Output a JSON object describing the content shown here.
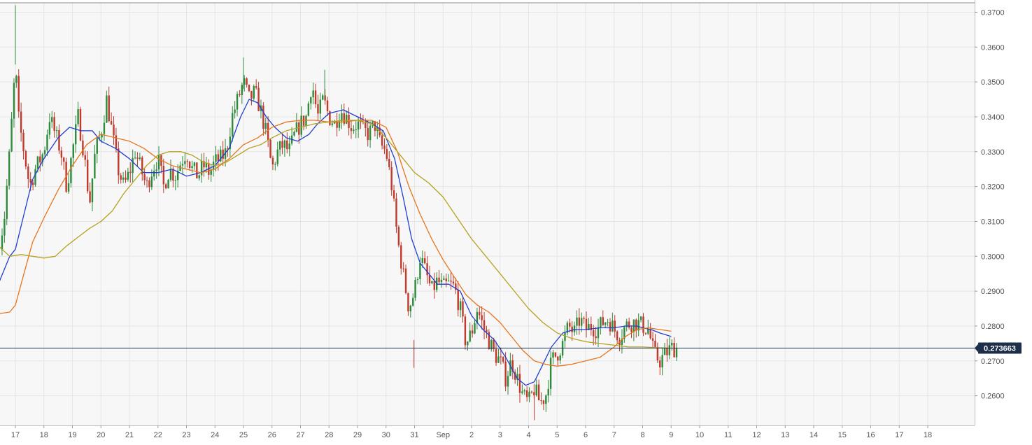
{
  "chart_data": {
    "type": "candlestick",
    "title": "",
    "xlabel": "",
    "ylabel": "",
    "ylim": [
      0.2515,
      0.3727
    ],
    "grid": true,
    "x_ticks": [
      "17",
      "18",
      "19",
      "20",
      "21",
      "22",
      "23",
      "24",
      "25",
      "26",
      "27",
      "28",
      "29",
      "30",
      "31",
      "Sep",
      "2",
      "3",
      "4",
      "5",
      "6",
      "7",
      "8",
      "9",
      "10",
      "11",
      "12",
      "13",
      "14",
      "15",
      "16",
      "17",
      "18"
    ],
    "y_ticks": [
      "0.2600",
      "0.2700",
      "0.2800",
      "0.2900",
      "0.3000",
      "0.3100",
      "0.3200",
      "0.3300",
      "0.3400",
      "0.3500",
      "0.3600",
      "0.3700"
    ],
    "y_tick_values": [
      0.26,
      0.27,
      0.28,
      0.29,
      0.3,
      0.31,
      0.32,
      0.33,
      0.34,
      0.35,
      0.36,
      0.37
    ],
    "current_price": 0.273663,
    "current_price_label": "0.273663",
    "colors": {
      "up": "#2e8b3a",
      "down": "#c0392b",
      "ma_fast": "#1f3fd1",
      "ma_mid": "#e8741c",
      "ma_slow": "#b5a21e",
      "price_line": "#1c2e4a",
      "grid": "#e6e6e6",
      "plot_bg": "#f7f7f7",
      "label_bg": "#1c2e4a"
    },
    "close_path": [
      [
        16.0,
        0.285
      ],
      [
        16.3,
        0.299
      ],
      [
        16.6,
        0.31
      ],
      [
        16.8,
        0.33
      ],
      [
        17.0,
        0.355
      ],
      [
        17.1,
        0.34
      ],
      [
        17.3,
        0.33
      ],
      [
        17.5,
        0.32
      ],
      [
        17.7,
        0.325
      ],
      [
        18.0,
        0.33
      ],
      [
        18.2,
        0.34
      ],
      [
        18.4,
        0.335
      ],
      [
        18.6,
        0.33
      ],
      [
        18.8,
        0.32
      ],
      [
        19.0,
        0.33
      ],
      [
        19.2,
        0.34
      ],
      [
        19.4,
        0.33
      ],
      [
        19.6,
        0.315
      ],
      [
        19.8,
        0.33
      ],
      [
        20.0,
        0.335
      ],
      [
        20.2,
        0.345
      ],
      [
        20.4,
        0.335
      ],
      [
        20.6,
        0.325
      ],
      [
        20.8,
        0.32
      ],
      [
        21.0,
        0.324
      ],
      [
        21.2,
        0.33
      ],
      [
        21.4,
        0.325
      ],
      [
        21.6,
        0.32
      ],
      [
        21.8,
        0.325
      ],
      [
        22.0,
        0.328
      ],
      [
        22.2,
        0.32
      ],
      [
        22.4,
        0.325
      ],
      [
        22.6,
        0.323
      ],
      [
        22.8,
        0.327
      ],
      [
        23.0,
        0.33
      ],
      [
        23.2,
        0.325
      ],
      [
        23.4,
        0.323
      ],
      [
        23.6,
        0.326
      ],
      [
        23.8,
        0.324
      ],
      [
        24.0,
        0.327
      ],
      [
        24.2,
        0.328
      ],
      [
        24.4,
        0.33
      ],
      [
        24.6,
        0.34
      ],
      [
        24.8,
        0.345
      ],
      [
        25.0,
        0.35
      ],
      [
        25.2,
        0.345
      ],
      [
        25.4,
        0.347
      ],
      [
        25.6,
        0.342
      ],
      [
        25.8,
        0.335
      ],
      [
        26.0,
        0.325
      ],
      [
        26.2,
        0.33
      ],
      [
        26.4,
        0.332
      ],
      [
        26.6,
        0.33
      ],
      [
        26.8,
        0.335
      ],
      [
        27.0,
        0.338
      ],
      [
        27.2,
        0.34
      ],
      [
        27.4,
        0.35
      ],
      [
        27.6,
        0.34
      ],
      [
        27.8,
        0.345
      ],
      [
        28.0,
        0.34
      ],
      [
        28.2,
        0.338
      ],
      [
        28.4,
        0.342
      ],
      [
        28.6,
        0.34
      ],
      [
        28.8,
        0.337
      ],
      [
        29.0,
        0.338
      ],
      [
        29.2,
        0.336
      ],
      [
        29.4,
        0.335
      ],
      [
        29.6,
        0.338
      ],
      [
        29.8,
        0.332
      ],
      [
        30.0,
        0.33
      ],
      [
        30.2,
        0.32
      ],
      [
        30.4,
        0.305
      ],
      [
        30.6,
        0.295
      ],
      [
        30.8,
        0.285
      ],
      [
        31.0,
        0.29
      ],
      [
        31.2,
        0.3
      ],
      [
        31.4,
        0.295
      ],
      [
        31.6,
        0.29
      ],
      [
        31.8,
        0.293
      ],
      [
        32.0,
        0.291
      ],
      [
        32.2,
        0.292
      ],
      [
        32.4,
        0.291
      ],
      [
        32.6,
        0.285
      ],
      [
        32.8,
        0.275
      ],
      [
        33.0,
        0.278
      ],
      [
        33.2,
        0.285
      ],
      [
        33.4,
        0.28
      ],
      [
        33.6,
        0.276
      ],
      [
        33.8,
        0.272
      ],
      [
        34.0,
        0.27
      ],
      [
        34.2,
        0.265
      ],
      [
        34.4,
        0.27
      ],
      [
        34.6,
        0.265
      ],
      [
        34.8,
        0.26
      ],
      [
        35.0,
        0.258
      ],
      [
        35.2,
        0.262
      ],
      [
        35.4,
        0.258
      ],
      [
        35.6,
        0.26
      ],
      [
        35.8,
        0.27
      ],
      [
        36.0,
        0.272
      ],
      [
        36.2,
        0.275
      ],
      [
        36.4,
        0.28
      ],
      [
        36.6,
        0.278
      ],
      [
        36.8,
        0.282
      ],
      [
        37.0,
        0.279
      ],
      [
        37.2,
        0.28
      ],
      [
        37.4,
        0.279
      ],
      [
        37.6,
        0.281
      ],
      [
        37.8,
        0.282
      ],
      [
        38.0,
        0.279
      ],
      [
        38.2,
        0.277
      ],
      [
        38.4,
        0.28
      ],
      [
        38.6,
        0.281
      ],
      [
        38.8,
        0.281
      ],
      [
        39.0,
        0.28
      ],
      [
        39.2,
        0.279
      ],
      [
        39.4,
        0.272
      ],
      [
        39.6,
        0.27
      ],
      [
        39.8,
        0.272
      ],
      [
        40.0,
        0.2737
      ]
    ],
    "series": [
      {
        "points": [
          [
            16.0,
            0.288
          ],
          [
            16.4,
            0.292
          ],
          [
            16.8,
            0.3
          ],
          [
            17.0,
            0.302
          ],
          [
            17.3,
            0.312
          ],
          [
            17.6,
            0.322
          ],
          [
            18.0,
            0.328
          ],
          [
            18.5,
            0.334
          ],
          [
            18.9,
            0.337
          ],
          [
            19.3,
            0.336
          ],
          [
            19.7,
            0.336
          ],
          [
            20.0,
            0.333
          ],
          [
            20.5,
            0.331
          ],
          [
            21.0,
            0.328
          ],
          [
            21.5,
            0.324
          ],
          [
            22.0,
            0.324
          ],
          [
            22.5,
            0.325
          ],
          [
            23.0,
            0.323
          ],
          [
            23.5,
            0.324
          ],
          [
            24.0,
            0.326
          ],
          [
            24.5,
            0.331
          ],
          [
            24.9,
            0.34
          ],
          [
            25.2,
            0.345
          ],
          [
            25.5,
            0.344
          ],
          [
            25.8,
            0.34
          ],
          [
            26.1,
            0.337
          ],
          [
            26.5,
            0.334
          ],
          [
            26.9,
            0.333
          ],
          [
            27.3,
            0.335
          ],
          [
            27.6,
            0.338
          ],
          [
            28.0,
            0.341
          ],
          [
            28.5,
            0.342
          ],
          [
            29.0,
            0.34
          ],
          [
            29.5,
            0.338
          ],
          [
            29.9,
            0.336
          ],
          [
            30.3,
            0.328
          ],
          [
            30.6,
            0.317
          ],
          [
            30.9,
            0.305
          ],
          [
            31.2,
            0.298
          ],
          [
            31.5,
            0.295
          ],
          [
            31.8,
            0.292
          ],
          [
            32.2,
            0.292
          ],
          [
            32.6,
            0.29
          ],
          [
            33.0,
            0.283
          ],
          [
            33.4,
            0.279
          ],
          [
            33.8,
            0.276
          ],
          [
            34.2,
            0.271
          ],
          [
            34.6,
            0.265
          ],
          [
            34.9,
            0.263
          ],
          [
            35.2,
            0.264
          ],
          [
            35.5,
            0.269
          ],
          [
            35.8,
            0.274
          ],
          [
            36.2,
            0.278
          ],
          [
            36.6,
            0.279
          ],
          [
            37.0,
            0.279
          ],
          [
            37.5,
            0.2795
          ],
          [
            38.0,
            0.2795
          ],
          [
            38.4,
            0.28
          ],
          [
            38.8,
            0.28
          ],
          [
            39.0,
            0.2795
          ],
          [
            39.3,
            0.279
          ],
          [
            39.6,
            0.278
          ],
          [
            40.0,
            0.277
          ]
        ]
      },
      {
        "points": [
          [
            16.0,
            0.284
          ],
          [
            16.4,
            0.2835
          ],
          [
            16.8,
            0.284
          ],
          [
            17.0,
            0.286
          ],
          [
            17.3,
            0.295
          ],
          [
            17.6,
            0.304
          ],
          [
            18.0,
            0.311
          ],
          [
            18.5,
            0.319
          ],
          [
            19.0,
            0.326
          ],
          [
            19.5,
            0.332
          ],
          [
            20.0,
            0.335
          ],
          [
            20.5,
            0.334
          ],
          [
            21.0,
            0.333
          ],
          [
            21.5,
            0.331
          ],
          [
            22.0,
            0.328
          ],
          [
            22.5,
            0.326
          ],
          [
            23.0,
            0.325
          ],
          [
            23.5,
            0.324
          ],
          [
            24.0,
            0.325
          ],
          [
            24.5,
            0.328
          ],
          [
            25.0,
            0.332
          ],
          [
            25.5,
            0.334
          ],
          [
            26.0,
            0.337
          ],
          [
            26.5,
            0.3385
          ],
          [
            27.0,
            0.339
          ],
          [
            27.5,
            0.339
          ],
          [
            28.0,
            0.3385
          ],
          [
            28.5,
            0.3385
          ],
          [
            29.0,
            0.339
          ],
          [
            29.5,
            0.339
          ],
          [
            30.0,
            0.337
          ],
          [
            30.4,
            0.33
          ],
          [
            30.8,
            0.32
          ],
          [
            31.2,
            0.312
          ],
          [
            31.6,
            0.305
          ],
          [
            32.0,
            0.299
          ],
          [
            32.4,
            0.294
          ],
          [
            32.8,
            0.289
          ],
          [
            33.2,
            0.286
          ],
          [
            33.6,
            0.284
          ],
          [
            34.0,
            0.281
          ],
          [
            34.4,
            0.277
          ],
          [
            34.8,
            0.273
          ],
          [
            35.2,
            0.27
          ],
          [
            35.6,
            0.269
          ],
          [
            36.0,
            0.2685
          ],
          [
            36.5,
            0.269
          ],
          [
            37.0,
            0.27
          ],
          [
            37.5,
            0.271
          ],
          [
            38.0,
            0.274
          ],
          [
            38.4,
            0.277
          ],
          [
            38.8,
            0.279
          ],
          [
            39.2,
            0.2795
          ],
          [
            39.6,
            0.279
          ],
          [
            40.0,
            0.2785
          ]
        ]
      },
      {
        "points": [
          [
            16.0,
            0.307
          ],
          [
            16.4,
            0.303
          ],
          [
            16.8,
            0.3
          ],
          [
            17.2,
            0.3005
          ],
          [
            17.6,
            0.3
          ],
          [
            18.0,
            0.2995
          ],
          [
            18.4,
            0.3
          ],
          [
            18.8,
            0.303
          ],
          [
            19.2,
            0.3055
          ],
          [
            19.6,
            0.308
          ],
          [
            20.0,
            0.31
          ],
          [
            20.4,
            0.313
          ],
          [
            20.8,
            0.318
          ],
          [
            21.2,
            0.322
          ],
          [
            21.6,
            0.326
          ],
          [
            22.0,
            0.329
          ],
          [
            22.4,
            0.33
          ],
          [
            22.8,
            0.33
          ],
          [
            23.2,
            0.329
          ],
          [
            23.6,
            0.327
          ],
          [
            24.0,
            0.326
          ],
          [
            24.4,
            0.327
          ],
          [
            24.8,
            0.329
          ],
          [
            25.2,
            0.331
          ],
          [
            25.6,
            0.332
          ],
          [
            26.0,
            0.334
          ],
          [
            26.5,
            0.336
          ],
          [
            27.0,
            0.337
          ],
          [
            27.5,
            0.338
          ],
          [
            28.0,
            0.3385
          ],
          [
            28.5,
            0.339
          ],
          [
            29.0,
            0.339
          ],
          [
            29.5,
            0.338
          ],
          [
            30.0,
            0.334
          ],
          [
            30.5,
            0.329
          ],
          [
            31.0,
            0.324
          ],
          [
            31.5,
            0.321
          ],
          [
            32.0,
            0.317
          ],
          [
            32.5,
            0.311
          ],
          [
            33.0,
            0.305
          ],
          [
            33.5,
            0.3
          ],
          [
            34.0,
            0.295
          ],
          [
            34.5,
            0.29
          ],
          [
            35.0,
            0.285
          ],
          [
            35.5,
            0.281
          ],
          [
            36.0,
            0.278
          ],
          [
            36.5,
            0.2765
          ],
          [
            37.0,
            0.2755
          ],
          [
            37.5,
            0.275
          ],
          [
            38.0,
            0.2745
          ],
          [
            38.5,
            0.274
          ],
          [
            39.0,
            0.274
          ],
          [
            39.5,
            0.2738
          ],
          [
            40.0,
            0.2737
          ]
        ]
      }
    ]
  }
}
